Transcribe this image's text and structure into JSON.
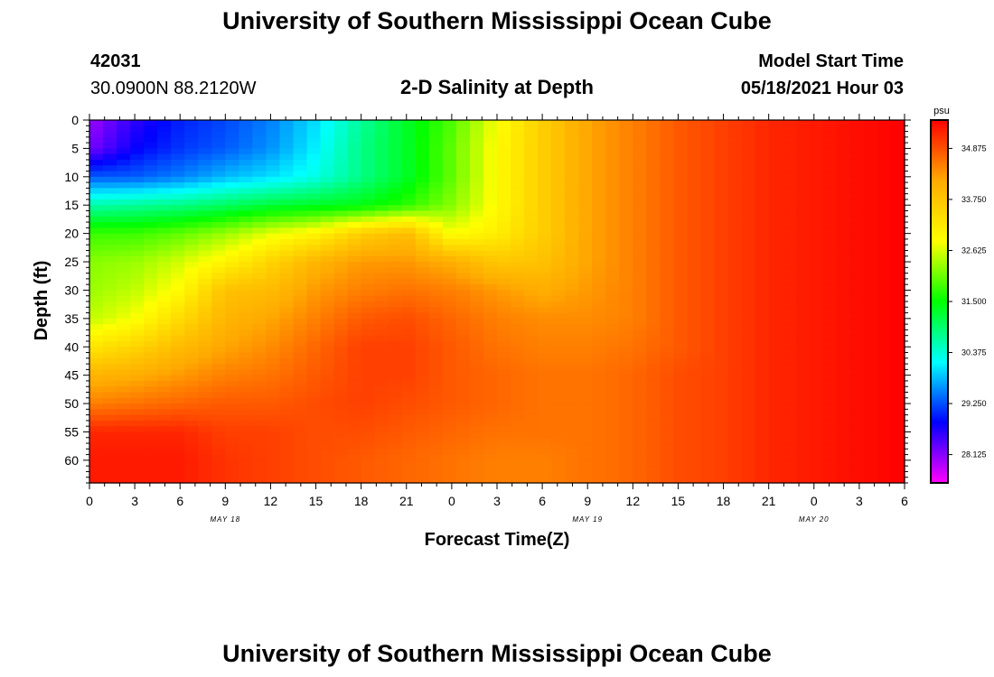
{
  "header": {
    "title": "University of Southern Mississippi Ocean Cube",
    "station_id": "42031",
    "station_coords": "30.0900N  88.2120W",
    "model_start_label": "Model Start Time",
    "model_start_value": "05/18/2021 Hour 03"
  },
  "footer": {
    "title": "University of Southern Mississippi Ocean Cube"
  },
  "chart_data": {
    "type": "heatmap",
    "title": "2-D Salinity at Depth",
    "xlabel": "Forecast Time(Z)",
    "ylabel": "Depth (ft)",
    "x_ticks": [
      "0",
      "3",
      "6",
      "9",
      "12",
      "15",
      "18",
      "21",
      "0",
      "3",
      "6",
      "9",
      "12",
      "15",
      "18",
      "21",
      "0",
      "3",
      "6"
    ],
    "date_labels": [
      {
        "label": "MAY 18",
        "tick_index": 3
      },
      {
        "label": "MAY 19",
        "tick_index": 11
      },
      {
        "label": "MAY 20",
        "tick_index": 16
      }
    ],
    "xlim_hours": [
      0,
      54
    ],
    "y_ticks": [
      0,
      5,
      10,
      15,
      20,
      25,
      30,
      35,
      40,
      45,
      50,
      55,
      60
    ],
    "ylim_ft": [
      0,
      64
    ],
    "colorbar": {
      "unit": "psu",
      "min": 27.5,
      "max": 35.5,
      "ticks": [
        "28.125",
        "29.250",
        "30.375",
        "31.500",
        "32.625",
        "33.750",
        "34.875"
      ],
      "colors": [
        "#ff00ff",
        "#0000ff",
        "#00ffff",
        "#00ff00",
        "#ffff00",
        "#ffaa00",
        "#ff0000"
      ]
    },
    "salinity_grid": {
      "hours": [
        0,
        3,
        6,
        9,
        12,
        15,
        18,
        21,
        24,
        27,
        30,
        33,
        36,
        39,
        42,
        45,
        48,
        51,
        54
      ],
      "depths_ft": [
        0,
        5,
        10,
        15,
        20,
        25,
        30,
        35,
        40,
        45,
        50,
        55,
        60,
        64
      ],
      "values": [
        [
          28.0,
          28.6,
          29.0,
          29.2,
          29.5,
          30.0,
          30.7,
          31.3,
          31.9,
          32.8,
          33.6,
          34.2,
          34.5,
          34.8,
          35.0,
          35.2,
          35.3,
          35.4,
          35.5
        ],
        [
          28.2,
          28.8,
          29.1,
          29.3,
          29.6,
          30.1,
          30.8,
          31.3,
          32.0,
          32.9,
          33.6,
          34.2,
          34.5,
          34.8,
          35.0,
          35.2,
          35.3,
          35.4,
          35.5
        ],
        [
          29.3,
          29.3,
          29.5,
          29.8,
          30.0,
          30.3,
          30.8,
          31.3,
          32.0,
          32.9,
          33.6,
          34.2,
          34.5,
          34.8,
          35.0,
          35.2,
          35.3,
          35.4,
          35.5
        ],
        [
          30.6,
          30.7,
          30.8,
          31.0,
          31.2,
          31.3,
          31.4,
          31.7,
          32.2,
          32.9,
          33.6,
          34.2,
          34.5,
          34.8,
          35.0,
          35.2,
          35.3,
          35.4,
          35.5
        ],
        [
          31.8,
          31.8,
          32.0,
          32.3,
          32.7,
          33.0,
          33.6,
          33.9,
          32.8,
          33.1,
          33.6,
          34.2,
          34.5,
          34.8,
          35.0,
          35.2,
          35.3,
          35.4,
          35.5
        ],
        [
          32.2,
          32.3,
          32.6,
          33.0,
          33.5,
          34.0,
          34.3,
          34.3,
          34.1,
          33.7,
          33.8,
          34.2,
          34.5,
          34.8,
          35.0,
          35.2,
          35.3,
          35.4,
          35.5
        ],
        [
          32.3,
          32.5,
          32.9,
          33.8,
          33.9,
          34.3,
          34.5,
          34.6,
          34.5,
          34.3,
          34.1,
          34.3,
          34.5,
          34.8,
          35.0,
          35.2,
          35.3,
          35.4,
          35.5
        ],
        [
          32.5,
          32.8,
          33.4,
          34.0,
          34.2,
          34.5,
          34.8,
          34.9,
          34.7,
          34.5,
          34.4,
          34.4,
          34.5,
          34.8,
          35.0,
          35.2,
          35.3,
          35.4,
          35.5
        ],
        [
          33.2,
          33.5,
          33.9,
          34.2,
          34.4,
          34.7,
          35.0,
          35.0,
          34.8,
          34.6,
          34.5,
          34.5,
          34.6,
          34.8,
          35.0,
          35.2,
          35.3,
          35.4,
          35.5
        ],
        [
          34.0,
          34.1,
          34.3,
          34.5,
          34.6,
          34.8,
          35.0,
          35.0,
          34.8,
          34.7,
          34.6,
          34.6,
          34.7,
          34.9,
          35.0,
          35.2,
          35.3,
          35.4,
          35.5
        ],
        [
          34.5,
          34.6,
          34.7,
          34.8,
          34.8,
          34.9,
          35.0,
          34.9,
          34.8,
          34.7,
          34.6,
          34.6,
          34.7,
          34.9,
          35.0,
          35.2,
          35.3,
          35.4,
          35.5
        ],
        [
          35.2,
          35.2,
          35.2,
          35.0,
          35.0,
          34.9,
          34.9,
          34.8,
          34.7,
          34.6,
          34.6,
          34.6,
          34.7,
          34.9,
          35.0,
          35.2,
          35.3,
          35.4,
          35.5
        ],
        [
          35.3,
          35.3,
          35.3,
          35.1,
          35.0,
          34.9,
          34.8,
          34.7,
          34.6,
          34.5,
          34.5,
          34.6,
          34.7,
          34.9,
          35.0,
          35.2,
          35.3,
          35.4,
          35.5
        ],
        [
          35.3,
          35.3,
          35.3,
          35.1,
          35.0,
          34.9,
          34.8,
          34.7,
          34.6,
          34.5,
          34.5,
          34.6,
          34.7,
          34.9,
          35.0,
          35.2,
          35.3,
          35.4,
          35.5
        ]
      ]
    }
  }
}
